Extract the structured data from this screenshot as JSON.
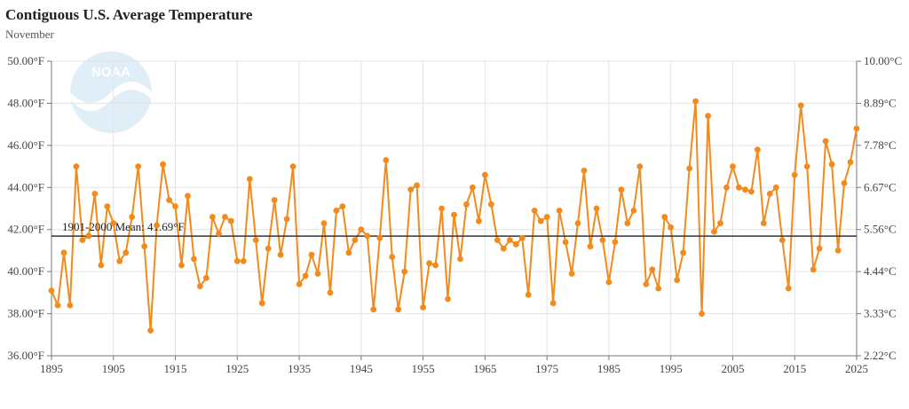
{
  "header": {
    "title": "Contiguous U.S. Average Temperature",
    "subtitle": "November"
  },
  "logo": {
    "text": "NOAA"
  },
  "chart_data": {
    "type": "line",
    "title": "Contiguous U.S. Average Temperature",
    "subtitle": "November",
    "x_ticks": [
      1895,
      1905,
      1915,
      1925,
      1935,
      1945,
      1955,
      1965,
      1975,
      1985,
      1995,
      2005,
      2015,
      2025
    ],
    "xlim": [
      1895,
      2025
    ],
    "ylim": [
      36,
      50
    ],
    "y_ticks_left": [
      "36.00°F",
      "38.00°F",
      "40.00°F",
      "42.00°F",
      "44.00°F",
      "46.00°F",
      "48.00°F",
      "50.00°F"
    ],
    "y_ticks_left_values": [
      36,
      38,
      40,
      42,
      44,
      46,
      48,
      50
    ],
    "y_ticks_right": [
      "2.22°C",
      "3.33°C",
      "4.44°C",
      "5.56°C",
      "6.67°C",
      "7.78°C",
      "8.89°C",
      "10.00°C"
    ],
    "mean": {
      "label": "1901-2000 Mean: 41.69°F",
      "value": 41.69
    },
    "grid": true,
    "colors": {
      "series": "#f28a1c",
      "mean": "#333333",
      "grid": "#e3e3e3"
    },
    "series": [
      {
        "x": [
          1895,
          1896,
          1897,
          1898,
          1899,
          1900,
          1901,
          1902,
          1903,
          1904,
          1905,
          1906,
          1907,
          1908,
          1909,
          1910,
          1911,
          1912,
          1913,
          1914,
          1915,
          1916,
          1917,
          1918,
          1919,
          1920,
          1921,
          1922,
          1923,
          1924,
          1925,
          1926,
          1927,
          1928,
          1929,
          1930,
          1931,
          1932,
          1933,
          1934,
          1935,
          1936,
          1937,
          1938,
          1939,
          1940,
          1941,
          1942,
          1943,
          1944,
          1945,
          1946,
          1947,
          1948,
          1949,
          1950,
          1951,
          1952,
          1953,
          1954,
          1955,
          1956,
          1957,
          1958,
          1959,
          1960,
          1961,
          1962,
          1963,
          1964,
          1965,
          1966,
          1967,
          1968,
          1969,
          1970,
          1971,
          1972,
          1973,
          1974,
          1975,
          1976,
          1977,
          1978,
          1979,
          1980,
          1981,
          1982,
          1983,
          1984,
          1985,
          1986,
          1987,
          1988,
          1989,
          1990,
          1991,
          1992,
          1993,
          1994,
          1995,
          1996,
          1997,
          1998,
          1999,
          2000,
          2001,
          2002,
          2003,
          2004,
          2005,
          2006,
          2007,
          2008,
          2009,
          2010,
          2011,
          2012,
          2013,
          2014,
          2015,
          2016,
          2017,
          2018,
          2019,
          2020,
          2021,
          2022,
          2023,
          2024,
          2025
        ],
        "y": [
          39.1,
          38.4,
          40.9,
          38.4,
          45.0,
          41.5,
          41.7,
          43.7,
          40.3,
          43.1,
          42.3,
          40.5,
          40.9,
          42.6,
          45.0,
          41.2,
          37.2,
          42.2,
          45.1,
          43.4,
          43.1,
          40.3,
          43.6,
          40.6,
          39.3,
          39.7,
          42.6,
          41.8,
          42.6,
          42.4,
          40.5,
          40.5,
          44.4,
          41.5,
          38.5,
          41.1,
          43.4,
          40.8,
          42.5,
          45.0,
          39.4,
          39.8,
          40.8,
          39.9,
          42.3,
          39.0,
          42.9,
          43.1,
          40.9,
          41.5,
          42.0,
          41.7,
          38.2,
          41.6,
          45.3,
          40.7,
          38.2,
          40.0,
          43.9,
          44.1,
          38.3,
          40.4,
          40.3,
          43.0,
          38.7,
          42.7,
          40.6,
          43.2,
          44.0,
          42.4,
          44.6,
          43.2,
          41.5,
          41.1,
          41.5,
          41.3,
          41.6,
          38.9,
          42.9,
          42.4,
          42.6,
          38.5,
          42.9,
          41.4,
          39.9,
          42.3,
          44.8,
          41.2,
          43.0,
          41.5,
          39.5,
          41.4,
          43.9,
          42.3,
          42.9,
          45.0,
          39.4,
          40.1,
          39.2,
          42.6,
          42.1,
          39.6,
          40.9,
          44.9,
          48.1,
          38.0,
          47.4,
          41.9,
          42.3,
          44.0,
          45.0,
          44.0,
          43.9,
          43.8,
          45.8,
          42.3,
          43.7,
          44.0,
          41.5,
          39.2,
          44.6,
          47.9,
          45.0,
          40.1,
          41.1,
          46.2,
          45.1,
          41.0,
          44.2,
          45.2,
          46.8
        ]
      }
    ]
  }
}
